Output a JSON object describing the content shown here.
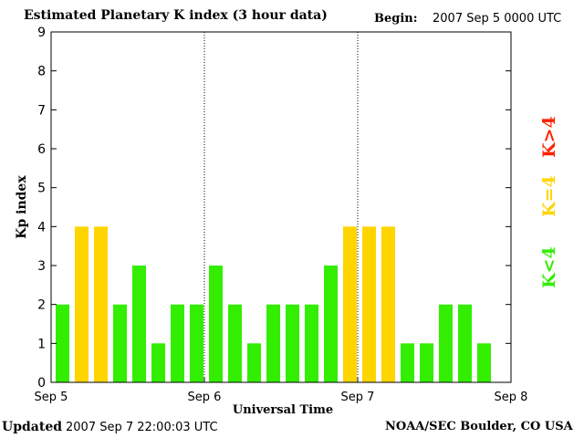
{
  "header": {
    "title": "Estimated Planetary K index (3 hour data)",
    "begin_label": "Begin:",
    "begin_value": "2007 Sep 5 0000 UTC"
  },
  "footer": {
    "updated_label": "Updated",
    "updated_value": "2007 Sep  7 22:00:03 UTC",
    "source": "NOAA/SEC Boulder, CO USA"
  },
  "chart_data": {
    "type": "bar",
    "xlabel": "Universal Time",
    "ylabel": "Kp index",
    "ylim": [
      0,
      9
    ],
    "yticks": [
      "0",
      "1",
      "2",
      "3",
      "4",
      "5",
      "6",
      "7",
      "8",
      "9"
    ],
    "xticks": [
      "Sep 5",
      "Sep 6",
      "Sep 7",
      "Sep 8"
    ],
    "bars_per_day": 8,
    "values": [
      2,
      4,
      4,
      2,
      3,
      1,
      2,
      2,
      3,
      2,
      1,
      2,
      2,
      2,
      3,
      4,
      4,
      4,
      1,
      1,
      2,
      2,
      1
    ],
    "legend": [
      {
        "label": "K<4",
        "color": "#33ee00"
      },
      {
        "label": "K=4",
        "color": "#ffd500"
      },
      {
        "label": "K>4",
        "color": "#ff2200"
      }
    ],
    "colors": {
      "low": "#33ee00",
      "mid": "#ffd500",
      "high": "#ff2200"
    }
  }
}
